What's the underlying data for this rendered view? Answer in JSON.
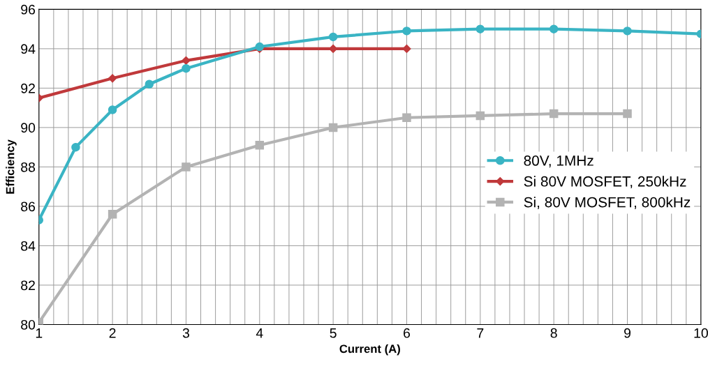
{
  "chart_data": {
    "type": "line",
    "xlabel": "Current (A)",
    "ylabel": "Efficiency",
    "series": [
      {
        "name": "80V, 1MHz",
        "color": "#3ab4c4",
        "marker": "circle",
        "x": [
          1,
          1.5,
          2,
          2.5,
          3,
          4,
          5,
          6,
          7,
          8,
          9,
          10
        ],
        "values": [
          85.3,
          89,
          90.9,
          92.2,
          93,
          94.1,
          94.6,
          94.9,
          95,
          95,
          94.9,
          94.75
        ]
      },
      {
        "name": "Si 80V MOSFET, 250kHz",
        "color": "#c0393b",
        "marker": "diamond",
        "x": [
          1,
          2,
          3,
          4,
          5,
          6
        ],
        "values": [
          91.5,
          92.5,
          93.4,
          94,
          94,
          94
        ]
      },
      {
        "name": "Si, 80V MOSFET, 800kHz",
        "color": "#b3b3b3",
        "marker": "square",
        "x": [
          1,
          2,
          3,
          4,
          5,
          6,
          7,
          8,
          9
        ],
        "values": [
          80.1,
          85.6,
          88,
          89.1,
          90,
          90.5,
          90.6,
          90.7,
          90.7
        ]
      }
    ],
    "xlim": [
      1,
      10
    ],
    "ylim": [
      80,
      96
    ],
    "xticks": [
      1,
      2,
      3,
      4,
      5,
      6,
      7,
      8,
      9,
      10
    ],
    "yticks": [
      80,
      82,
      84,
      86,
      88,
      90,
      92,
      94,
      96
    ],
    "grid": true,
    "legend": "center right",
    "line_style": "solid"
  }
}
